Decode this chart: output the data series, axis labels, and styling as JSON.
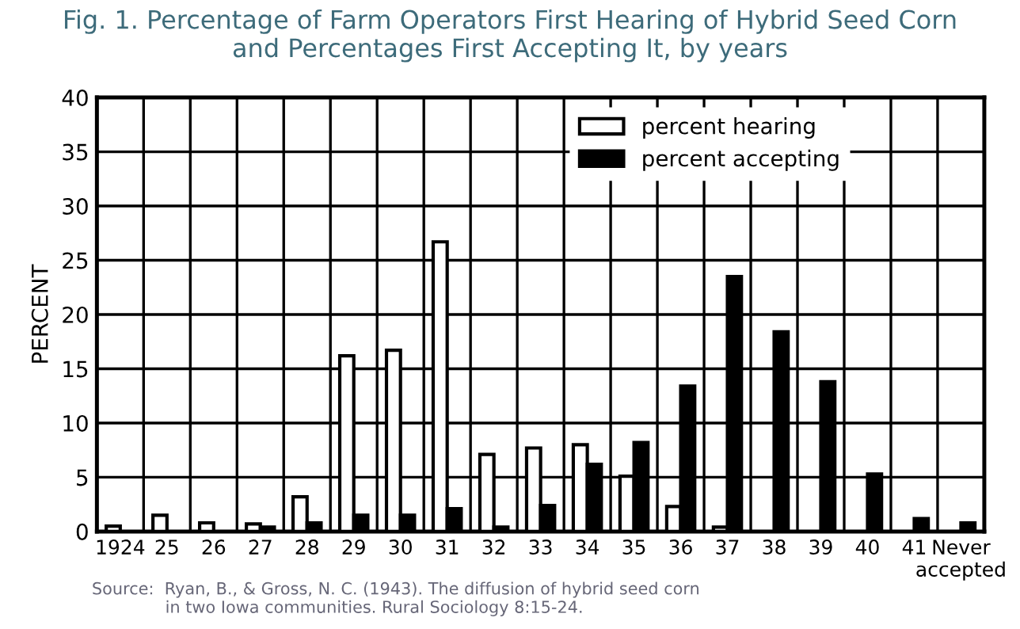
{
  "chart_data": {
    "type": "bar",
    "title": "Fig. 1. Percentage of Farm Operators First Hearing of Hybrid Seed Corn\nand Percentages First Accepting It, by years",
    "ylabel": "PERCENT",
    "categories": [
      "1924",
      "25",
      "26",
      "27",
      "28",
      "29",
      "30",
      "31",
      "32",
      "33",
      "34",
      "35",
      "36",
      "37",
      "38",
      "39",
      "40",
      "41",
      "Never\naccepted"
    ],
    "series": [
      {
        "name": "percent hearing",
        "color": "#ffffff",
        "values": [
          0.5,
          1.5,
          0.8,
          0.7,
          3.2,
          16.2,
          16.7,
          26.7,
          7.1,
          7.7,
          8.0,
          5.1,
          2.3,
          0.4,
          null,
          null,
          null,
          null,
          null
        ]
      },
      {
        "name": "percent accepting",
        "color": "#000000",
        "values": [
          null,
          null,
          null,
          0.4,
          0.8,
          1.5,
          1.5,
          2.1,
          0.4,
          2.4,
          6.2,
          8.2,
          13.4,
          23.5,
          18.4,
          13.8,
          5.3,
          1.2,
          0.8
        ]
      }
    ],
    "ylim": [
      0,
      40
    ],
    "yticks": [
      0,
      5,
      10,
      15,
      20,
      25,
      30,
      35,
      40
    ],
    "grid": true,
    "legend": "top right",
    "annotations": [
      "Source:  Ryan, B., & Gross, N. C. (1943). The diffusion of hybrid seed corn\n              in two Iowa communities. Rural Sociology 8:15-24."
    ]
  }
}
